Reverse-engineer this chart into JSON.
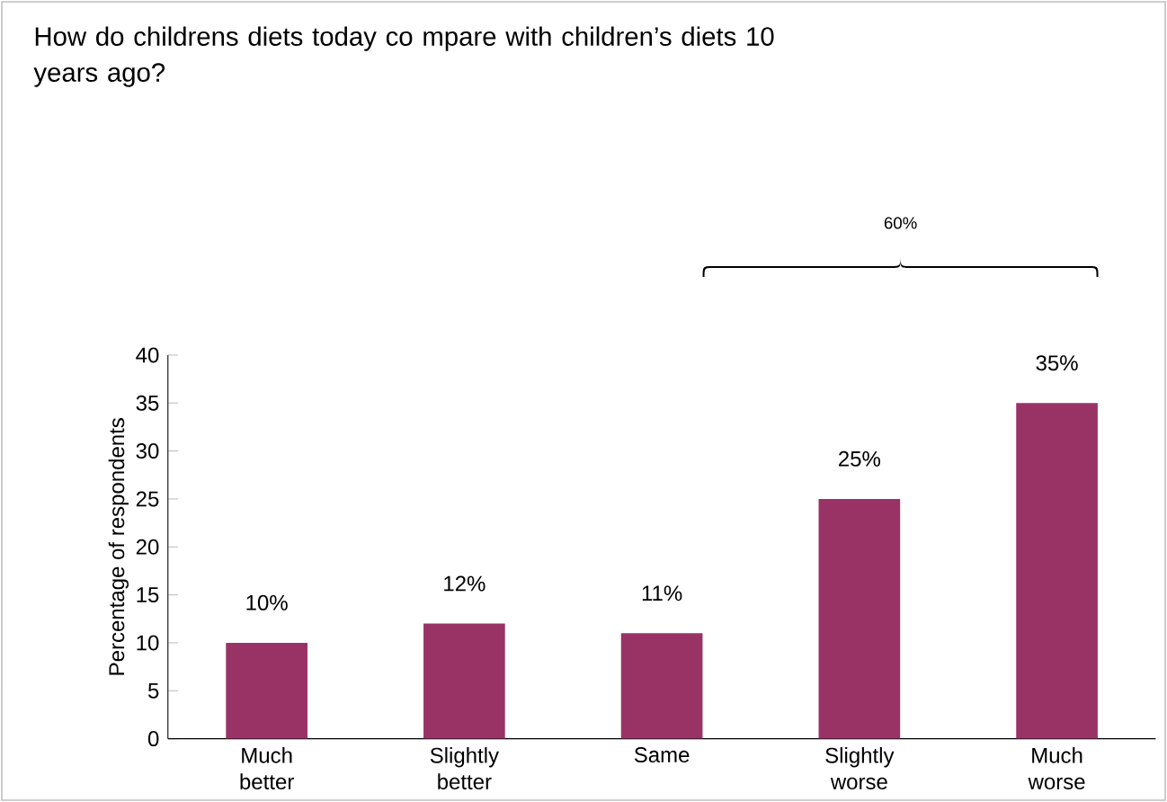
{
  "chart_data": {
    "type": "bar",
    "title": "How do childrens diets today co mpare with children’s diets 10 years ago?",
    "ylabel": "Percentage of respondents",
    "categories": [
      "Much better",
      "Slightly better",
      "Same",
      "Slightly worse",
      "Much worse"
    ],
    "values": [
      10,
      12,
      11,
      25,
      35
    ],
    "value_labels": [
      "10%",
      "12%",
      "11%",
      "25%",
      "35%"
    ],
    "color": "#993366",
    "ylim": [
      0,
      40
    ],
    "yticks": [
      0,
      5,
      10,
      15,
      20,
      25,
      30,
      35,
      40
    ],
    "annotations": [
      "60%"
    ],
    "grid": false
  }
}
